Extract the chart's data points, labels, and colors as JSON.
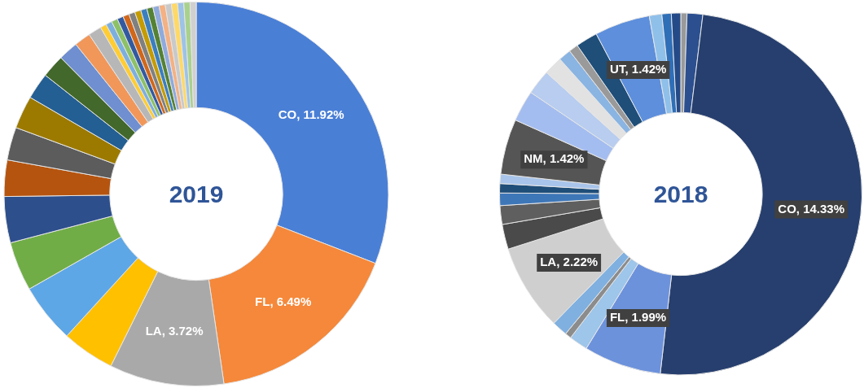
{
  "chart_data": [
    {
      "type": "donut",
      "title": "2019",
      "categories": [
        "CO",
        "FL",
        "LA",
        null,
        null,
        null,
        null,
        null,
        null,
        null,
        null,
        null,
        null,
        null,
        null,
        null,
        null,
        null,
        null,
        null,
        null,
        null,
        null,
        null,
        null,
        null,
        null,
        null,
        null,
        null,
        null
      ],
      "values": [
        11.92,
        6.49,
        3.72,
        1.71,
        1.93,
        1.6,
        1.5,
        1.18,
        1.07,
        1.07,
        0.86,
        0.75,
        0.64,
        0.53,
        0.43,
        0.2,
        0.2,
        0.2,
        0.2,
        0.2,
        0.2,
        0.2,
        0.2,
        0.2,
        0.2,
        0.2,
        0.2,
        0.2,
        0.2,
        0.2,
        0.2
      ],
      "value_labels": [
        "11.92%",
        "6.49%",
        "3.72%",
        null,
        null,
        null,
        null,
        null,
        null,
        null,
        null,
        null,
        null,
        null,
        null,
        null,
        null,
        null,
        null,
        null,
        null,
        null,
        null,
        null,
        null,
        null,
        null,
        null,
        null,
        null,
        null
      ],
      "colors": [
        "#4a7fd6",
        "#f5883a",
        "#a9a9a9",
        "#ffc000",
        "#5ea7e6",
        "#70ad47",
        "#2d4f8c",
        "#b5540f",
        "#5c5c5c",
        "#9c7a00",
        "#245f93",
        "#43682b",
        "#6f8fd0",
        "#f1975a",
        "#b7b7b7",
        "#ffcd33",
        "#7cafdd",
        "#8cc168",
        "#335aa1",
        "#d1671a",
        "#808080",
        "#c49b00",
        "#3a7fbf",
        "#548235",
        "#8faadc",
        "#f4b183",
        "#c9c9c9",
        "#ffd966",
        "#9dc3e6",
        "#a9d18e",
        "#d0d0d0"
      ]
    },
    {
      "type": "donut",
      "title": "2018",
      "categories": [
        null,
        null,
        "CO",
        "FL",
        null,
        null,
        null,
        "LA",
        null,
        null,
        null,
        null,
        null,
        "NM",
        null,
        null,
        null,
        null,
        null,
        null,
        "UT",
        null,
        null,
        null
      ],
      "values": [
        0.16,
        0.4,
        14.33,
        1.99,
        0.48,
        0.16,
        0.4,
        2.22,
        0.64,
        0.48,
        0.32,
        0.24,
        0.24,
        1.42,
        0.8,
        0.64,
        0.48,
        0.32,
        0.24,
        0.56,
        1.42,
        0.32,
        0.24,
        0.24
      ],
      "value_labels": [
        null,
        null,
        "14.33%",
        "1.99%",
        null,
        null,
        null,
        "2.22%",
        null,
        null,
        null,
        null,
        null,
        "1.42%",
        null,
        null,
        null,
        null,
        null,
        null,
        "1.42%",
        null,
        null,
        null
      ],
      "colors": [
        "#9a9a9a",
        "#2c4f8f",
        "#263f6e",
        "#6d92dc",
        "#9ec5ea",
        "#8c8c8c",
        "#7fb0e0",
        "#cfcfcf",
        "#4a4a4a",
        "#5f5f5f",
        "#3e77b8",
        "#1f4e79",
        "#a8c4ea",
        "#555555",
        "#a4bdf0",
        "#b8cdef",
        "#e2e2e2",
        "#8ab4e2",
        "#9a9a9a",
        "#1f4e79",
        "#5d8fdc",
        "#8fc0ea",
        "#2f6fb8",
        "#254a88"
      ]
    }
  ]
}
